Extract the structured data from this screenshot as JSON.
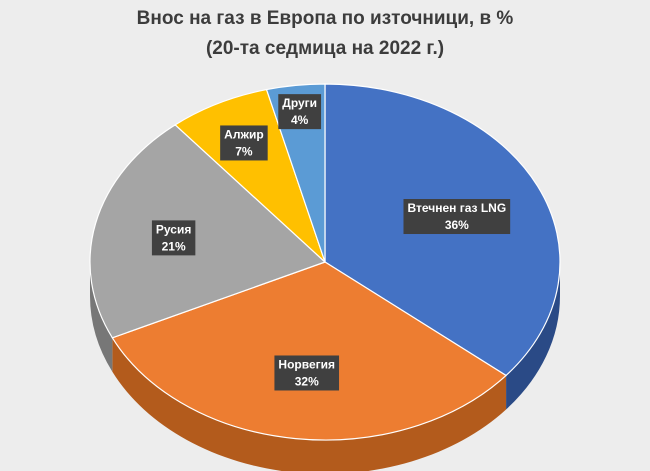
{
  "chart_data": {
    "type": "pie",
    "title": "Внос на газ в Европа по източници, в %",
    "subtitle": "(20-та седмица на 2022 г.)",
    "unit": "%",
    "slices": [
      {
        "label": "Втечнен газ LNG",
        "value": 36,
        "display": "36%",
        "color": "#4472c4",
        "side_color": "#2a4a86"
      },
      {
        "label": "Норвегия",
        "value": 32,
        "display": "32%",
        "color": "#ed7d31",
        "side_color": "#b35b1c"
      },
      {
        "label": "Русия",
        "value": 21,
        "display": "21%",
        "color": "#a5a5a5",
        "side_color": "#777777"
      },
      {
        "label": "Алжир",
        "value": 7,
        "display": "7%",
        "color": "#ffc000",
        "side_color": "#bf8f00"
      },
      {
        "label": "Други",
        "value": 4,
        "display": "4%",
        "color": "#5b9bd5",
        "side_color": "#3b6c9a"
      }
    ],
    "legend": "none",
    "style": "3d-tilted"
  }
}
